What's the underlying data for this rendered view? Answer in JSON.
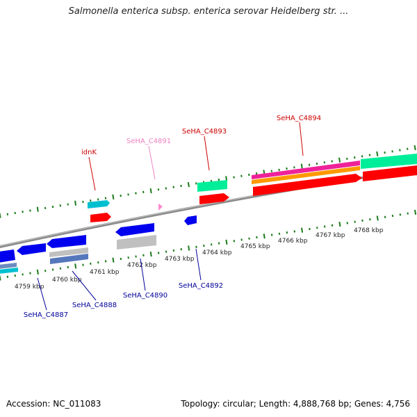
{
  "header": {
    "title": "Salmonella enterica subsp. enterica serovar Heidelberg str. ..."
  },
  "footer": {
    "accession": "Accession: NC_011083",
    "summary": "Topology: circular; Length: 4,888,768 bp; Genes: 4,756"
  },
  "chart_data": {
    "type": "genome-map",
    "ticks": [
      {
        "label": "4759 kbp",
        "kbp": 4759
      },
      {
        "label": "4760 kbp",
        "kbp": 4760
      },
      {
        "label": "4761 kbp",
        "kbp": 4761
      },
      {
        "label": "4762 kbp",
        "kbp": 4762
      },
      {
        "label": "4763 kbp",
        "kbp": 4763
      },
      {
        "label": "4764 kbp",
        "kbp": 4764
      },
      {
        "label": "4765 kbp",
        "kbp": 4765
      },
      {
        "label": "4766 kbp",
        "kbp": 4766
      },
      {
        "label": "4767 kbp",
        "kbp": 4767
      },
      {
        "label": "4768 kbp",
        "kbp": 4768
      }
    ],
    "gene_labels": [
      {
        "name": "idnK",
        "strand": "forward",
        "color": "#cc0000"
      },
      {
        "name": "SeHA_C4891",
        "strand": "forward",
        "color": "#f080c0"
      },
      {
        "name": "SeHA_C4893",
        "strand": "forward",
        "color": "#cc0000"
      },
      {
        "name": "SeHA_C4894",
        "strand": "forward",
        "color": "#cc0000"
      },
      {
        "name": "SeHA_C4887",
        "strand": "reverse",
        "color": "#000099"
      },
      {
        "name": "SeHA_C4888",
        "strand": "reverse",
        "color": "#000099"
      },
      {
        "name": "SeHA_C4890",
        "strand": "reverse",
        "color": "#000099"
      },
      {
        "name": "SeHA_C4892",
        "strand": "reverse",
        "color": "#000099"
      }
    ],
    "colors": {
      "backbone": "#808080",
      "tick": "#1a7a1a",
      "cds_forward": "#ff0000",
      "cds_reverse": "#0000ee",
      "gene_green": "#00ee99",
      "gene_cyan": "#00c0d0",
      "pseudo_gray": "#c0c0c0",
      "pink": "#ff88cc",
      "orange": "#ff9900",
      "magenta": "#ee2299"
    }
  }
}
